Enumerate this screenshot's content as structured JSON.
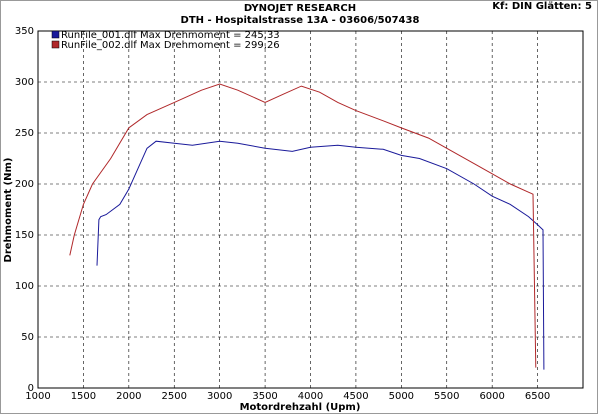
{
  "chart_data": {
    "type": "line",
    "title": "DYNOJET RESEARCH",
    "subtitle": "DTH - Hospitalstrasse 13A - 03606/507438",
    "annotations": [
      "Kf: DIN  Glätten: 5"
    ],
    "x_label": "Motordrehzahl (Upm)",
    "y_label": "Drehmoment (Nm)",
    "xlim": [
      1000,
      7000
    ],
    "ylim": [
      0,
      350
    ],
    "xticks": [
      1000,
      1500,
      2000,
      2500,
      3000,
      3500,
      4000,
      4500,
      5000,
      5500,
      6000,
      6500
    ],
    "yticks": [
      0,
      50,
      100,
      150,
      200,
      250,
      300,
      350
    ],
    "grid": true,
    "series": [
      {
        "name": "RunFile_001.dlf Max Drehmoment = 245,33",
        "color": "#1a1a9a",
        "x": [
          1650,
          1670,
          1690,
          1750,
          1900,
          2000,
          2100,
          2200,
          2300,
          2500,
          2700,
          3000,
          3200,
          3500,
          3800,
          4000,
          4300,
          4500,
          4800,
          5000,
          5200,
          5500,
          5800,
          6000,
          6200,
          6400,
          6500,
          6560,
          6570
        ],
        "values": [
          120,
          165,
          168,
          170,
          180,
          195,
          215,
          235,
          242,
          240,
          238,
          242,
          240,
          235,
          232,
          236,
          238,
          236,
          234,
          228,
          225,
          215,
          200,
          188,
          180,
          168,
          160,
          155,
          18
        ]
      },
      {
        "name": "RunFile_002.dlf Max Drehmoment = 299,26",
        "color": "#b0282a",
        "x": [
          1350,
          1400,
          1500,
          1600,
          1800,
          2000,
          2200,
          2500,
          2800,
          3000,
          3200,
          3500,
          3700,
          3900,
          4100,
          4300,
          4500,
          4800,
          5000,
          5300,
          5500,
          5800,
          6000,
          6200,
          6400,
          6450,
          6480
        ],
        "values": [
          130,
          150,
          180,
          200,
          225,
          255,
          268,
          280,
          292,
          298,
          292,
          280,
          288,
          296,
          290,
          280,
          272,
          262,
          255,
          245,
          235,
          220,
          210,
          200,
          192,
          190,
          20
        ]
      }
    ]
  }
}
